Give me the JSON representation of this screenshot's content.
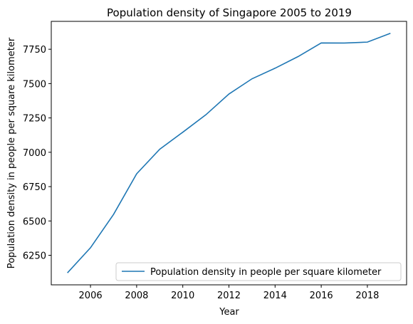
{
  "chart_data": {
    "type": "line",
    "title": "Population density of Singapore 2005 to 2019",
    "xlabel": "Year",
    "ylabel": "Population density in people per square kilometer",
    "x": [
      2005,
      2006,
      2007,
      2008,
      2009,
      2010,
      2011,
      2012,
      2013,
      2014,
      2015,
      2016,
      2017,
      2018,
      2019
    ],
    "series": [
      {
        "name": "Population density in people per square kilometer",
        "color": "#1f77b4",
        "values": [
          6122,
          6305,
          6548,
          6843,
          7022,
          7146,
          7273,
          7424,
          7535,
          7612,
          7697,
          7796,
          7795,
          7802,
          7866
        ]
      }
    ],
    "xticks": [
      2006,
      2008,
      2010,
      2012,
      2014,
      2016,
      2018
    ],
    "yticks": [
      6250,
      6500,
      6750,
      7000,
      7250,
      7500,
      7750
    ],
    "xlim": [
      2004.3,
      2019.7
    ],
    "ylim": [
      6035,
      7953
    ],
    "legend_position": "lower-right",
    "grid": false
  }
}
